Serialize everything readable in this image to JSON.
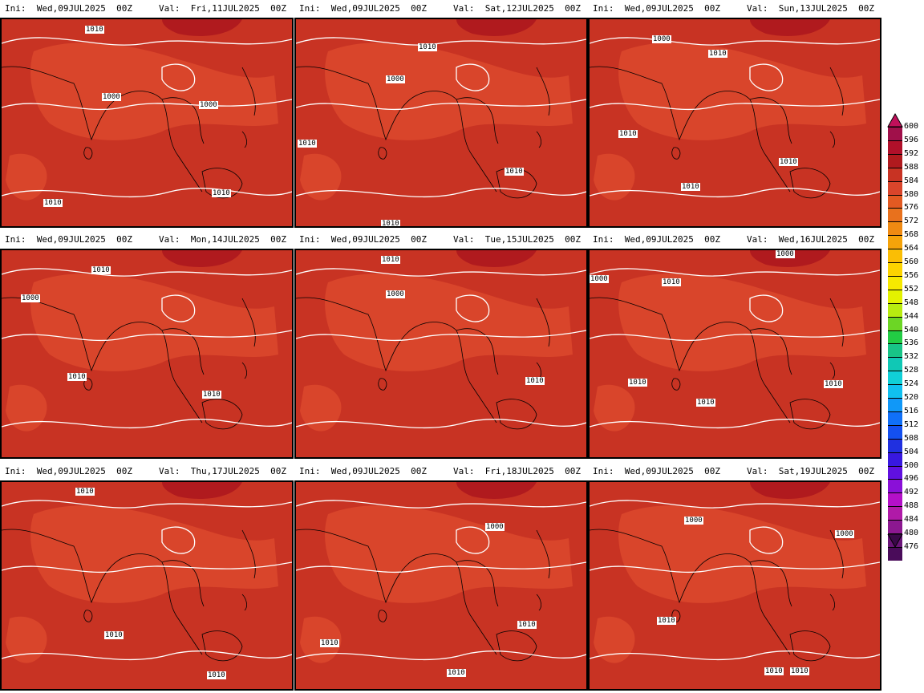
{
  "panels": [
    {
      "ini": "Ini:  Wed,09JUL2025  00Z",
      "valid": "Val:  Fri,11JUL2025  00Z",
      "labels": [
        "1010",
        "1000",
        "1000",
        "1010",
        "1010"
      ]
    },
    {
      "ini": "Ini:  Wed,09JUL2025  00Z",
      "valid": "Val:  Sat,12JUL2025  00Z",
      "labels": [
        "1010",
        "1000",
        "1010",
        "1010",
        "1010"
      ]
    },
    {
      "ini": "Ini:  Wed,09JUL2025  00Z",
      "valid": "Val:  Sun,13JUL2025  00Z",
      "labels": [
        "1000",
        "1010",
        "1010",
        "1010",
        "1010"
      ]
    },
    {
      "ini": "Ini:  Wed,09JUL2025  00Z",
      "valid": "Val:  Mon,14JUL2025  00Z",
      "labels": [
        "1010",
        "1000",
        "1010",
        "1010"
      ]
    },
    {
      "ini": "Ini:  Wed,09JUL2025  00Z",
      "valid": "Val:  Tue,15JUL2025  00Z",
      "labels": [
        "1010",
        "1000",
        "1010",
        "1010"
      ]
    },
    {
      "ini": "Ini:  Wed,09JUL2025  00Z",
      "valid": "Val:  Wed,16JUL2025  00Z",
      "labels": [
        "1000",
        "1010",
        "1000",
        "1010",
        "1010",
        "1010"
      ]
    },
    {
      "ini": "Ini:  Wed,09JUL2025  00Z",
      "valid": "Val:  Thu,17JUL2025  00Z",
      "labels": [
        "1010",
        "1010",
        "1010"
      ]
    },
    {
      "ini": "Ini:  Wed,09JUL2025  00Z",
      "valid": "Val:  Fri,18JUL2025  00Z",
      "labels": [
        "1000",
        "1010",
        "1010",
        "1010"
      ]
    },
    {
      "ini": "Ini:  Wed,09JUL2025  00Z",
      "valid": "Val:  Sat,19JUL2025  00Z",
      "labels": [
        "1000",
        "1000",
        "1010",
        "1010",
        "1010"
      ]
    }
  ],
  "colorbar": {
    "levels": [
      "600",
      "596",
      "592",
      "588",
      "584",
      "580",
      "576",
      "572",
      "568",
      "564",
      "560",
      "556",
      "552",
      "548",
      "544",
      "540",
      "536",
      "532",
      "528",
      "524",
      "520",
      "516",
      "512",
      "508",
      "504",
      "500",
      "496",
      "492",
      "488",
      "484",
      "480",
      "476"
    ],
    "colors": [
      "#a0104a",
      "#b0102a",
      "#b01a1e",
      "#c83323",
      "#d9452b",
      "#e25a22",
      "#e8711d",
      "#ef8a12",
      "#f5a30a",
      "#fabe05",
      "#fcd400",
      "#f6e900",
      "#e3f200",
      "#b8ec10",
      "#6cd625",
      "#22cc44",
      "#18c487",
      "#10c8b5",
      "#10d0d8",
      "#10c0f0",
      "#1098f8",
      "#1070f8",
      "#1450f0",
      "#2030e0",
      "#3818e0",
      "#6010e0",
      "#8a10d8",
      "#b410c8",
      "#b01aa8",
      "#8c1890",
      "#6a1478",
      "#4a0c5a"
    ],
    "background": "#c83323",
    "shade_a": "#d9452b",
    "shade_b": "#b01a1e",
    "shade_c": "#ef8a12"
  }
}
